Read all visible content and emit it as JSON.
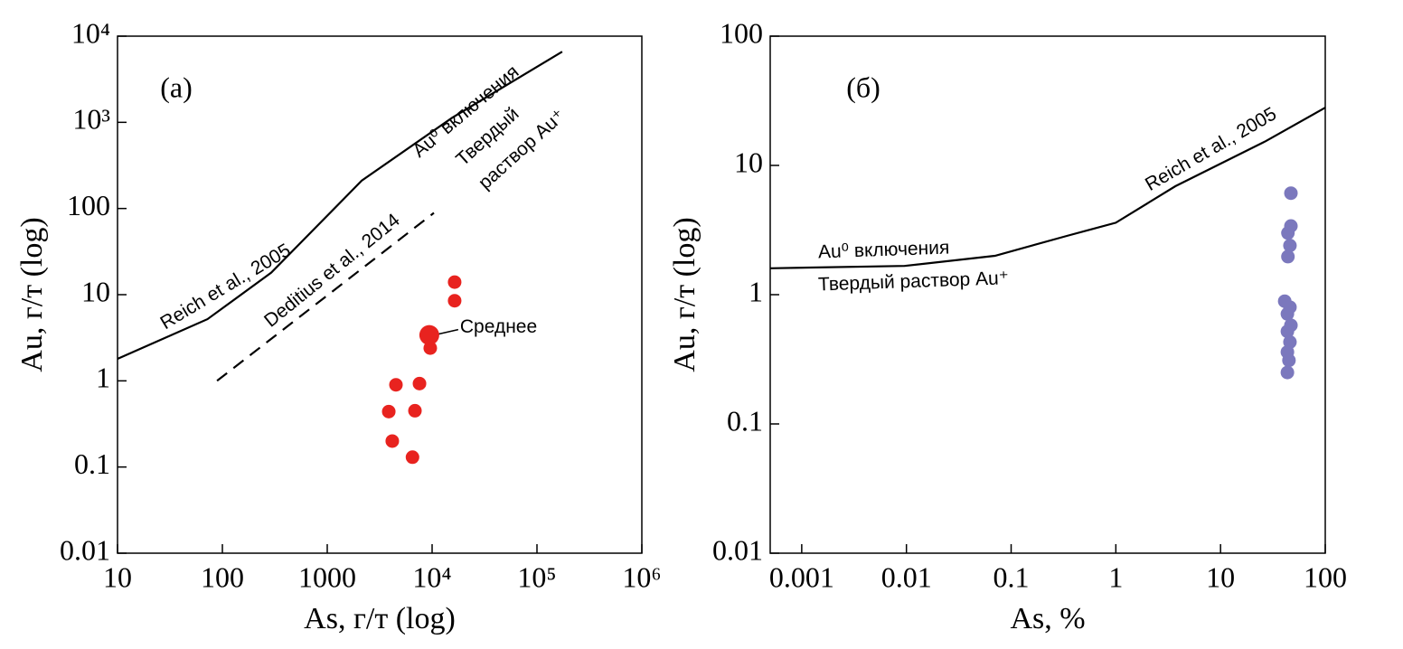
{
  "chart_data": [
    {
      "type": "scatter",
      "panel_label": "(а)",
      "xlabel": "As, г/т (log)",
      "ylabel": "Au, г/т (log)",
      "xlog": true,
      "ylog": true,
      "grid": false,
      "xlim": [
        10,
        1000000
      ],
      "ylim": [
        0.01,
        10000
      ],
      "xticks": [
        10,
        100,
        1000,
        {
          "value": 10000,
          "label": "10⁴"
        },
        {
          "value": 100000,
          "label": "10⁵"
        },
        {
          "value": 1000000,
          "label": "10⁶"
        }
      ],
      "yticks": [
        0.01,
        0.1,
        1,
        10,
        100,
        {
          "value": 1000,
          "label": "10³"
        },
        {
          "value": 10000,
          "label": "10⁴"
        }
      ],
      "series": [
        {
          "color": "#e8231f",
          "x": [
            3860,
            4170,
            4520,
            6500,
            6860,
            7580,
            9600,
            16400,
            16400
          ],
          "values": [
            0.44,
            0.2,
            0.9,
            0.13,
            0.45,
            0.93,
            2.4,
            14,
            8.5
          ]
        }
      ],
      "mean": {
        "label": "Среднее",
        "color": "#e8231f",
        "x": 9400,
        "value": 3.4
      },
      "lines": [
        {
          "label": "Reich et al., 2005",
          "style": "solid",
          "x": [
            10,
            72,
            292,
            2130,
            15500,
            174000
          ],
          "values": [
            1.8,
            5.2,
            18,
            210,
            1130,
            6600
          ]
        },
        {
          "label": "Deditius et al., 2014",
          "style": "dashed",
          "x": [
            89,
            10400
          ],
          "values": [
            1.0,
            89
          ]
        }
      ],
      "annotations": [
        "Au⁰ включения",
        "Твердый",
        "раствор Au⁺"
      ]
    },
    {
      "type": "scatter",
      "panel_label": "(б)",
      "xlabel": "As, %",
      "ylabel": "Au, г/т (log)",
      "xlog": true,
      "ylog": true,
      "grid": false,
      "xlim": [
        0.0005,
        100
      ],
      "ylim": [
        0.01,
        100
      ],
      "xticks": [
        0.001,
        0.01,
        0.1,
        1,
        10,
        100
      ],
      "yticks": [
        0.01,
        0.1,
        1,
        10,
        100
      ],
      "series": [
        {
          "color": "#7b78bd",
          "x": [
            47,
            47,
            44,
            46,
            44,
            41,
            46,
            43.5,
            47,
            43.5,
            46,
            43.5,
            45,
            43.5
          ],
          "values": [
            6.1,
            3.4,
            3.0,
            2.4,
            1.97,
            0.89,
            0.8,
            0.71,
            0.58,
            0.52,
            0.43,
            0.36,
            0.31,
            0.25
          ]
        }
      ],
      "lines": [
        {
          "label": "Reich et al., 2005",
          "style": "solid",
          "x": [
            0.0005,
            0.0096,
            0.07,
            0.34,
            1,
            3.7,
            27,
            100
          ],
          "values": [
            1.6,
            1.67,
            2.0,
            2.85,
            3.6,
            6.9,
            15.4,
            28
          ]
        }
      ],
      "annotations": [
        "Au⁰ включения",
        "Твердый раствор Au⁺"
      ]
    }
  ]
}
